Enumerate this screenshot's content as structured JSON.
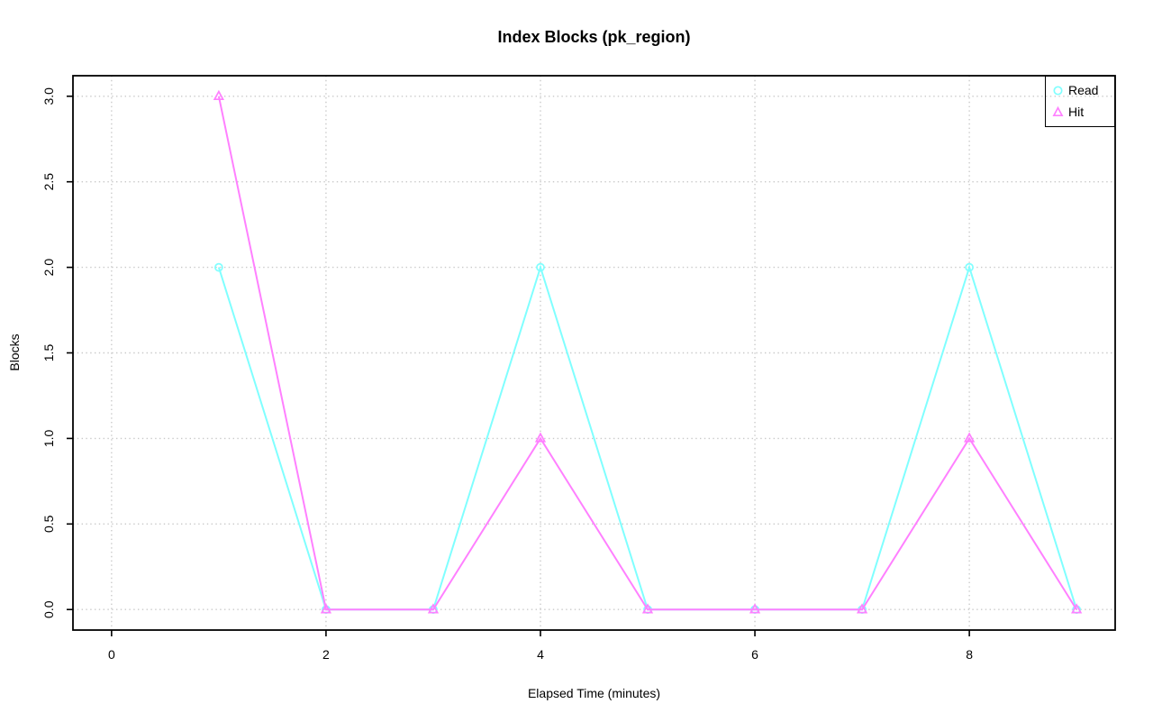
{
  "title": "Index Blocks (pk_region)",
  "colors": {
    "read": "#80FFFF",
    "hit": "#FF80FF",
    "grid": "#C9C9C9",
    "axis": "#000000",
    "background": "#FFFFFF",
    "text": "#000000"
  },
  "legend": {
    "position": "top-right",
    "items": [
      {
        "label": "Read",
        "marker": "circle",
        "color": "#80FFFF"
      },
      {
        "label": "Hit",
        "marker": "triangle",
        "color": "#FF80FF"
      }
    ]
  },
  "chart_data": {
    "type": "line",
    "title": "Index Blocks (pk_region)",
    "xlabel": "Elapsed Time (minutes)",
    "ylabel": "Blocks",
    "x": [
      1,
      2,
      3,
      4,
      5,
      6,
      7,
      8,
      9
    ],
    "series": [
      {
        "name": "Read",
        "marker": "circle",
        "color": "#80FFFF",
        "values": [
          2,
          0,
          0,
          2,
          0,
          0,
          0,
          2,
          0
        ]
      },
      {
        "name": "Hit",
        "marker": "triangle",
        "color": "#FF80FF",
        "values": [
          3,
          0,
          0,
          1,
          0,
          0,
          0,
          1,
          0
        ]
      }
    ],
    "xticks": [
      0,
      2,
      4,
      6,
      8
    ],
    "xtick_labels": [
      "0",
      "2",
      "4",
      "6",
      "8"
    ],
    "yticks": [
      0.0,
      0.5,
      1.0,
      1.5,
      2.0,
      2.5,
      3.0
    ],
    "ytick_labels": [
      "0.0",
      "0.5",
      "1.0",
      "1.5",
      "2.0",
      "2.5",
      "3.0"
    ],
    "xlim": [
      -0.36,
      9.36
    ],
    "ylim": [
      -0.12,
      3.12
    ],
    "grid": true,
    "grid_style": "dotted",
    "legend_position": "top-right"
  }
}
